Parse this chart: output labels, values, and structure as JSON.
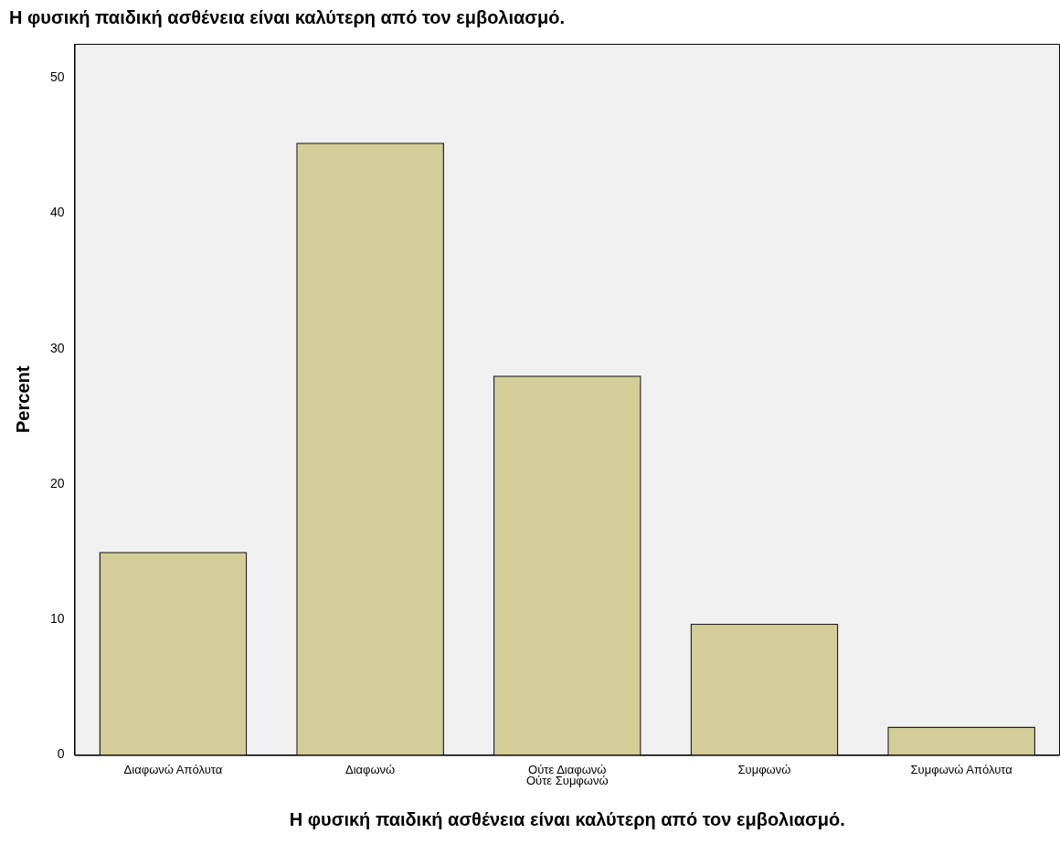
{
  "chart_data": {
    "type": "bar",
    "title": "Η φυσική παιδική ασθένεια είναι καλύτερη από τον εμβολιασμό.",
    "xlabel": "Η φυσική παιδική ασθένεια είναι καλύτερη από τον εμβολιασμό.",
    "ylabel": "Percent",
    "categories": [
      "Διαφωνώ Απόλυτα",
      "Διαφωνώ",
      "Ούτε Διαφωνώ Ούτε Συμφωνώ",
      "Συμφωνώ",
      "Συμφωνώ Απόλυτα"
    ],
    "values": [
      15.0,
      45.2,
      28.0,
      9.7,
      2.1
    ],
    "color": "#d3ce97",
    "ylim": [
      0,
      52.5
    ],
    "yticks": [
      0,
      10,
      20,
      30,
      40,
      50
    ],
    "grid": false,
    "legend": false
  }
}
